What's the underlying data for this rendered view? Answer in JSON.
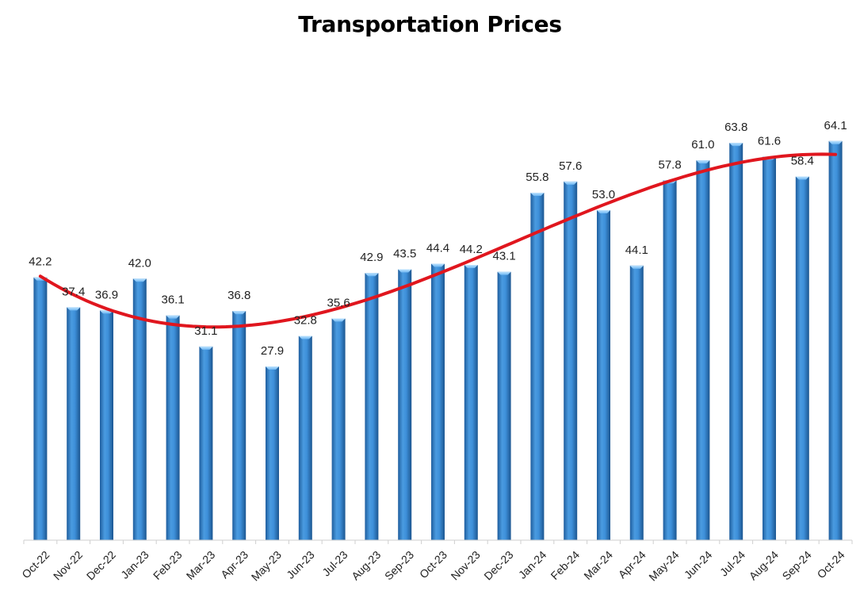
{
  "chart_data": {
    "type": "bar",
    "title": "Transportation Prices",
    "xlabel": "",
    "ylabel": "",
    "ylim": [
      0,
      75
    ],
    "grid": false,
    "legend": "none",
    "categories": [
      "Oct-22",
      "Nov-22",
      "Dec-22",
      "Jan-23",
      "Feb-23",
      "Mar-23",
      "Apr-23",
      "May-23",
      "Jun-23",
      "Jul-23",
      "Aug-23",
      "Sep-23",
      "Oct-23",
      "Nov-23",
      "Dec-23",
      "Jan-24",
      "Feb-24",
      "Mar-24",
      "Apr-24",
      "May-24",
      "Jun-24",
      "Jul-24",
      "Aug-24",
      "Sep-24",
      "Oct-24"
    ],
    "series": [
      {
        "name": "Transportation Prices",
        "values": [
          42.2,
          37.4,
          36.9,
          42.0,
          36.1,
          31.1,
          36.8,
          27.9,
          32.8,
          35.6,
          42.9,
          43.5,
          44.4,
          44.2,
          43.1,
          55.8,
          57.6,
          53.0,
          44.1,
          57.8,
          61.0,
          63.8,
          61.6,
          58.4,
          64.1
        ],
        "labels": [
          "42.2",
          "37.4",
          "36.9",
          "42.0",
          "36.1",
          "31.1",
          "36.8",
          "27.9",
          "32.8",
          "35.6",
          "42.9",
          "43.5",
          "44.4",
          "44.2",
          "43.1",
          "55.8",
          "57.6",
          "53.0",
          "44.1",
          "57.8",
          "61.0",
          "63.8",
          "61.6",
          "58.4",
          "64.1"
        ],
        "color": "#3A8FD9"
      },
      {
        "name": "Trend",
        "type": "poly-trendline",
        "color": "#E0161E"
      }
    ]
  }
}
